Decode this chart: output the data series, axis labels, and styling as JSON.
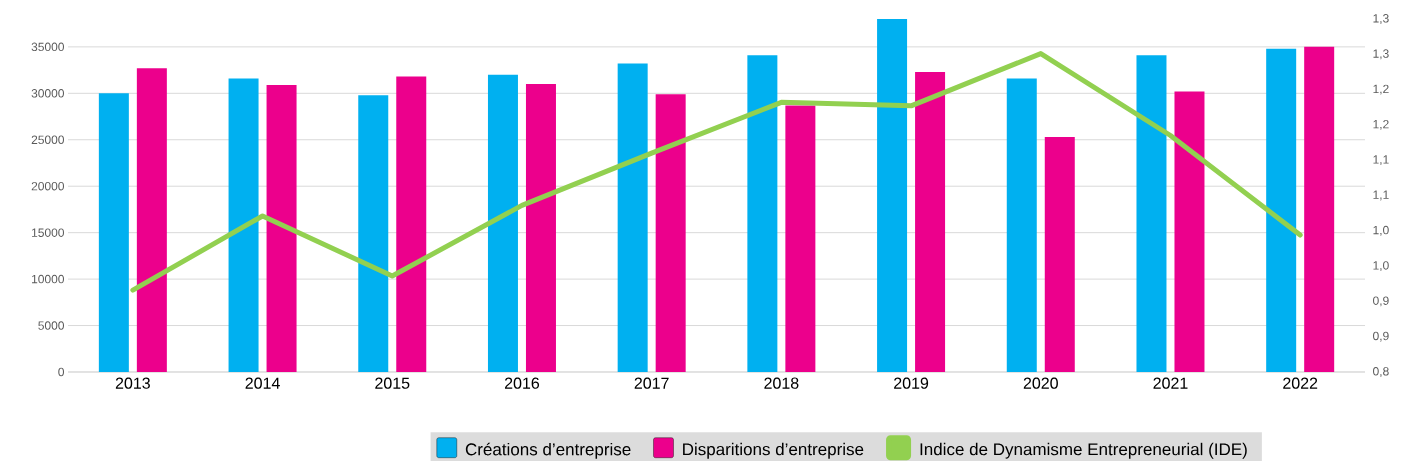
{
  "chart_data": {
    "type": "bar",
    "categories": [
      "2013",
      "2014",
      "2015",
      "2016",
      "2017",
      "2018",
      "2019",
      "2020",
      "2021",
      "2022"
    ],
    "series": [
      {
        "name": "Créations d’entreprise",
        "color": "#00b0f0",
        "values": [
          30000,
          31600,
          29800,
          32000,
          33200,
          34100,
          38000,
          31600,
          34100,
          34800
        ]
      },
      {
        "name": "Disparitions d’entreprise",
        "color": "#ec008c",
        "values": [
          32700,
          30900,
          31800,
          31000,
          29900,
          28700,
          32300,
          25300,
          30200,
          35000
        ]
      },
      {
        "name": "Indice de Dynamisme Entrepreneurial (IDE)",
        "color": "#92d050",
        "type": "line",
        "axis": "y2",
        "values": [
          0.916,
          1.021,
          0.936,
          1.036,
          1.11,
          1.182,
          1.177,
          1.251,
          1.135,
          0.994
        ]
      }
    ],
    "ylim": [
      0,
      38000
    ],
    "yticks": [
      0,
      5000,
      10000,
      15000,
      20000,
      25000,
      30000,
      35000
    ],
    "y2lim": [
      0.8,
      1.3
    ],
    "y2ticks": [
      {
        "value": 0.8,
        "label": "0,8"
      },
      {
        "value": 0.85,
        "label": "0,9"
      },
      {
        "value": 0.9,
        "label": "0,9"
      },
      {
        "value": 0.95,
        "label": "1,0"
      },
      {
        "value": 1.0,
        "label": "1,0"
      },
      {
        "value": 1.05,
        "label": "1,1"
      },
      {
        "value": 1.1,
        "label": "1,1"
      },
      {
        "value": 1.15,
        "label": "1,2"
      },
      {
        "value": 1.2,
        "label": "1,2"
      },
      {
        "value": 1.25,
        "label": "1,3"
      },
      {
        "value": 1.3,
        "label": "1,3"
      }
    ],
    "grid": "y",
    "legend": "bottom",
    "marker": "none",
    "line_style": "solid"
  }
}
